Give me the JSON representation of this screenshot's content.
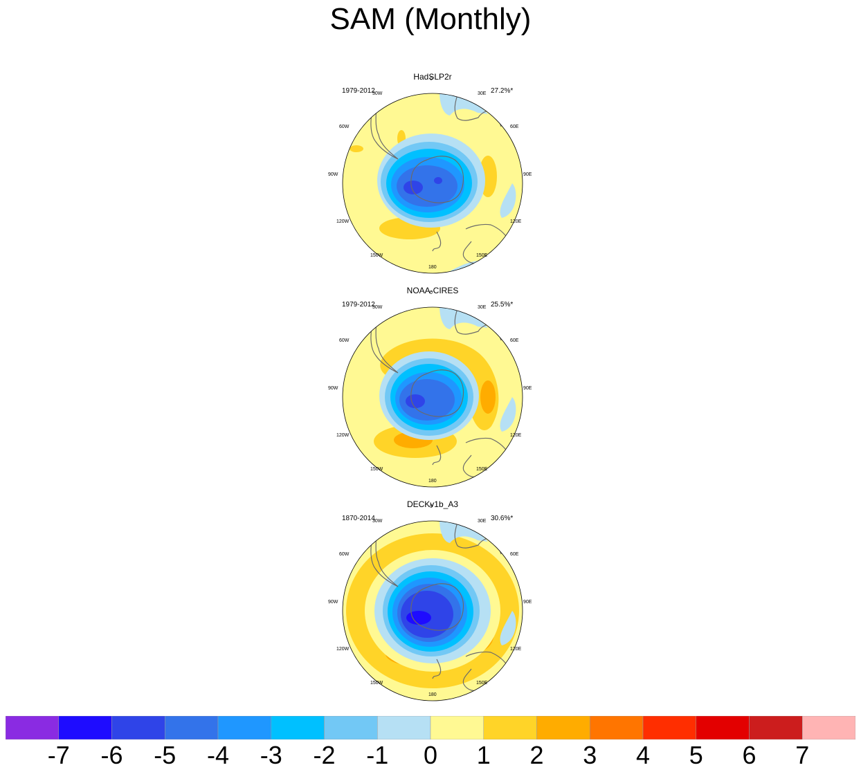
{
  "title": "SAM (Monthly)",
  "panels": [
    {
      "name": "HadSLP2r",
      "period": "1979-2012",
      "pct": "27.2%*"
    },
    {
      "name": "NOAA-CIRES",
      "period": "1979-2012",
      "pct": "25.5%*"
    },
    {
      "name": "DECKv1b_A3",
      "period": "1870-2014",
      "pct": "30.6%*"
    }
  ],
  "longitude_labels": [
    "0",
    "30E",
    "60E",
    "90E",
    "120E",
    "150E",
    "180",
    "150W",
    "120W",
    "90W",
    "60W",
    "30W"
  ],
  "colorbar": {
    "labels": [
      "-7",
      "-6",
      "-5",
      "-4",
      "-3",
      "-2",
      "-1",
      "0",
      "1",
      "2",
      "3",
      "4",
      "5",
      "6",
      "7"
    ],
    "colors": [
      "#8a2be2",
      "#1e0cff",
      "#2f44e8",
      "#3373ea",
      "#1f97ff",
      "#00c0ff",
      "#72c8f5",
      "#b6e0f4",
      "#fff993",
      "#ffd428",
      "#ffac00",
      "#ff7500",
      "#ff2e00",
      "#e30000",
      "#cc1d1d",
      "#ffb4b4"
    ]
  },
  "palette": {
    "pos1": "#fff993",
    "pos2": "#ffd428",
    "pos3": "#ffac00",
    "neg1": "#b6e0f4",
    "neg2": "#72c8f5",
    "neg3": "#00c0ff",
    "neg4": "#1f97ff",
    "neg5": "#3373ea",
    "neg6": "#2f44e8",
    "neg7": "#1e0cff"
  }
}
